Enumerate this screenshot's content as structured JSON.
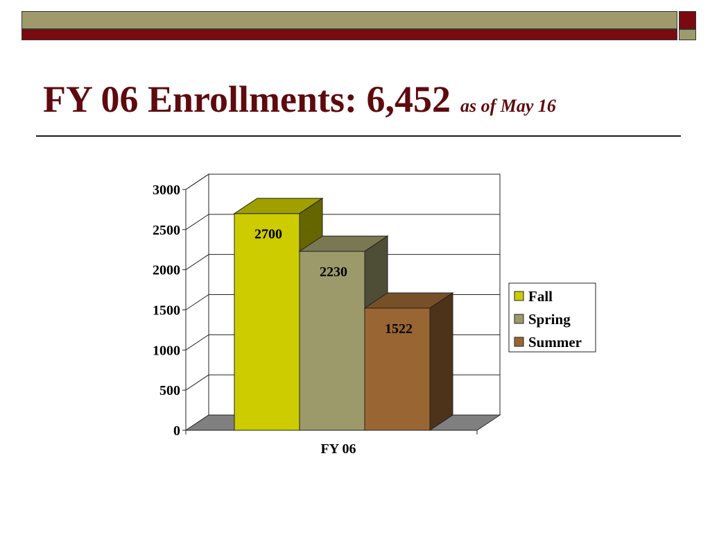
{
  "slide": {
    "title": "FY 06 Enrollments:  6,452",
    "title_note": "as of May 16",
    "colors": {
      "title": "#5e0a0e",
      "band_olive": "#9e9a6b",
      "band_maroon": "#7a0a0f"
    }
  },
  "chart_data": {
    "type": "bar",
    "categories": [
      "FY 06"
    ],
    "series": [
      {
        "name": "Fall",
        "values": [
          2700
        ],
        "color": "#cccc00"
      },
      {
        "name": "Spring",
        "values": [
          2230
        ],
        "color": "#9c9a6a"
      },
      {
        "name": "Summer",
        "values": [
          1522
        ],
        "color": "#996633"
      }
    ],
    "data_labels": [
      "2700",
      "2230",
      "1522"
    ],
    "y_ticks": [
      "0",
      "500",
      "1000",
      "1500",
      "2000",
      "2500",
      "3000"
    ],
    "ylim": [
      0,
      3000
    ],
    "grid": true,
    "three_d": true,
    "legend_position": "right"
  }
}
